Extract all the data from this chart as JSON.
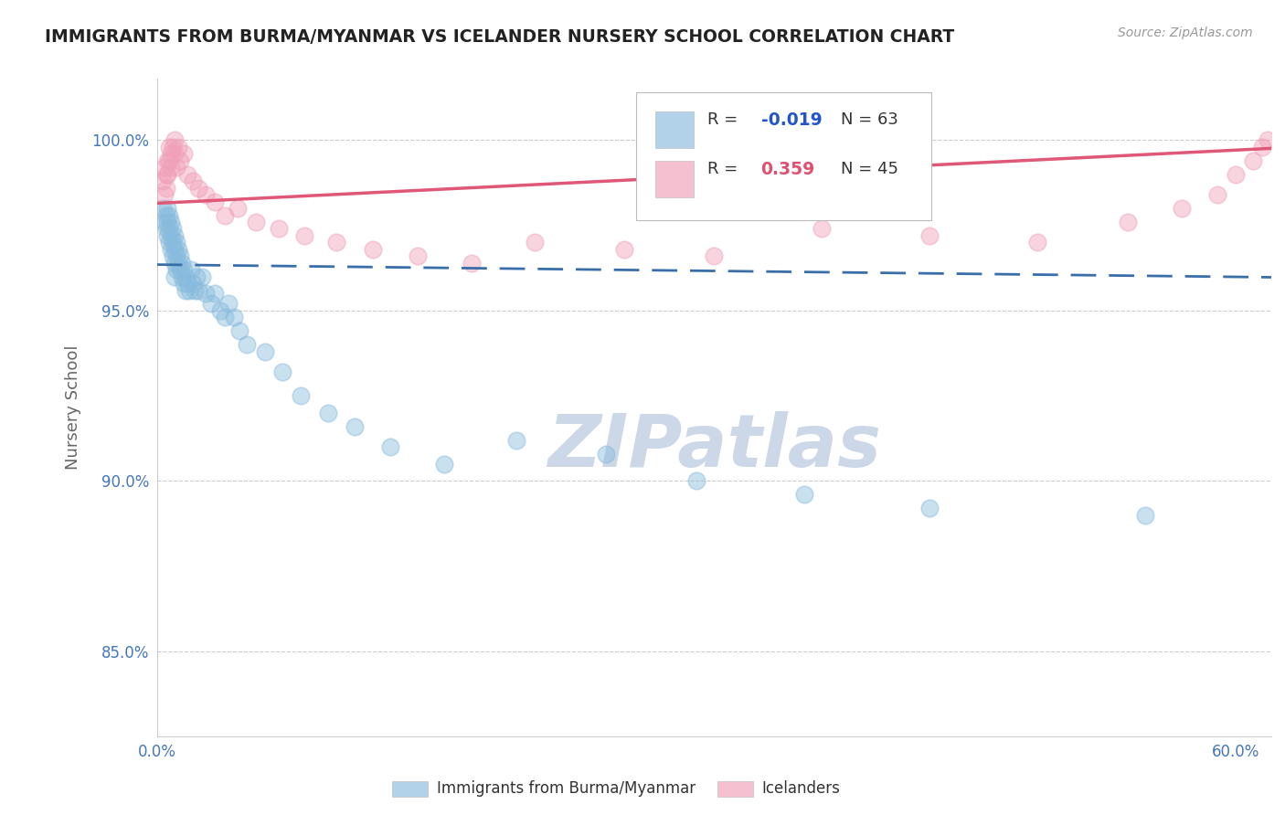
{
  "title": "IMMIGRANTS FROM BURMA/MYANMAR VS ICELANDER NURSERY SCHOOL CORRELATION CHART",
  "source_text": "Source: ZipAtlas.com",
  "ylabel": "Nursery School",
  "xlim": [
    0.0,
    0.62
  ],
  "ylim": [
    0.825,
    1.018
  ],
  "yticks": [
    0.85,
    0.9,
    0.95,
    1.0
  ],
  "ytick_labels": [
    "85.0%",
    "90.0%",
    "95.0%",
    "100.0%"
  ],
  "xtick_positions": [
    0.0,
    0.6
  ],
  "xtick_labels": [
    "0.0%",
    "60.0%"
  ],
  "blue_R": -0.019,
  "blue_N": 63,
  "pink_R": 0.359,
  "pink_N": 45,
  "blue_color": "#88bbdd",
  "pink_color": "#f0a0b8",
  "blue_line_color": "#3a6ea8",
  "pink_line_color": "#e05878",
  "grid_color": "#cccccc",
  "title_color": "#222222",
  "axis_label_color": "#666666",
  "tick_color": "#4477bb",
  "watermark_color": "#ccd8e8",
  "background_color": "#ffffff",
  "legend_R_color_blue": "#2255cc",
  "legend_R_color_pink": "#e05070",
  "blue_scatter_x": [
    0.003,
    0.004,
    0.005,
    0.005,
    0.006,
    0.006,
    0.006,
    0.007,
    0.007,
    0.007,
    0.008,
    0.008,
    0.008,
    0.009,
    0.009,
    0.009,
    0.01,
    0.01,
    0.01,
    0.01,
    0.011,
    0.011,
    0.011,
    0.012,
    0.012,
    0.013,
    0.013,
    0.014,
    0.014,
    0.015,
    0.015,
    0.016,
    0.016,
    0.017,
    0.018,
    0.019,
    0.02,
    0.021,
    0.022,
    0.023,
    0.025,
    0.027,
    0.03,
    0.032,
    0.035,
    0.038,
    0.04,
    0.043,
    0.046,
    0.05,
    0.06,
    0.07,
    0.08,
    0.095,
    0.11,
    0.13,
    0.16,
    0.2,
    0.25,
    0.3,
    0.36,
    0.43,
    0.55
  ],
  "blue_scatter_y": [
    0.98,
    0.976,
    0.978,
    0.974,
    0.98,
    0.976,
    0.972,
    0.978,
    0.974,
    0.97,
    0.976,
    0.972,
    0.968,
    0.974,
    0.97,
    0.966,
    0.972,
    0.968,
    0.964,
    0.96,
    0.97,
    0.966,
    0.962,
    0.968,
    0.964,
    0.966,
    0.962,
    0.964,
    0.96,
    0.962,
    0.958,
    0.96,
    0.956,
    0.958,
    0.956,
    0.962,
    0.958,
    0.956,
    0.96,
    0.956,
    0.96,
    0.955,
    0.952,
    0.955,
    0.95,
    0.948,
    0.952,
    0.948,
    0.944,
    0.94,
    0.938,
    0.932,
    0.925,
    0.92,
    0.916,
    0.91,
    0.905,
    0.912,
    0.908,
    0.9,
    0.896,
    0.892,
    0.89
  ],
  "pink_scatter_x": [
    0.003,
    0.004,
    0.004,
    0.005,
    0.005,
    0.006,
    0.006,
    0.007,
    0.007,
    0.008,
    0.008,
    0.009,
    0.01,
    0.01,
    0.011,
    0.012,
    0.013,
    0.015,
    0.017,
    0.02,
    0.023,
    0.027,
    0.032,
    0.038,
    0.045,
    0.055,
    0.068,
    0.082,
    0.1,
    0.12,
    0.145,
    0.175,
    0.21,
    0.26,
    0.31,
    0.37,
    0.43,
    0.49,
    0.54,
    0.57,
    0.59,
    0.6,
    0.61,
    0.615,
    0.618
  ],
  "pink_scatter_y": [
    0.988,
    0.984,
    0.992,
    0.99,
    0.986,
    0.994,
    0.99,
    0.998,
    0.994,
    0.996,
    0.992,
    0.998,
    1.0,
    0.996,
    0.992,
    0.998,
    0.994,
    0.996,
    0.99,
    0.988,
    0.986,
    0.984,
    0.982,
    0.978,
    0.98,
    0.976,
    0.974,
    0.972,
    0.97,
    0.968,
    0.966,
    0.964,
    0.97,
    0.968,
    0.966,
    0.974,
    0.972,
    0.97,
    0.976,
    0.98,
    0.984,
    0.99,
    0.994,
    0.998,
    1.0
  ]
}
